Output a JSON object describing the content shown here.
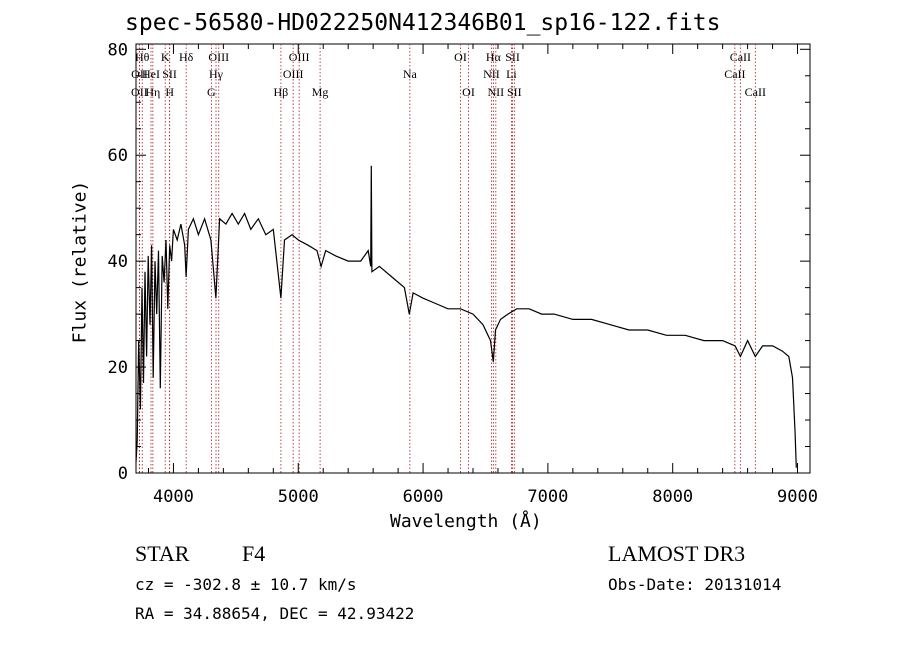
{
  "chart_data": {
    "type": "line",
    "title": "spec-56580-HD022250N412346B01_sp16-122.fits",
    "xlabel": "Wavelength (Å)",
    "ylabel": "Flux (relative)",
    "xlim": [
      3700,
      9100
    ],
    "ylim": [
      0,
      81
    ],
    "xticks": [
      4000,
      5000,
      6000,
      7000,
      8000,
      9000
    ],
    "xtick_labels": [
      "4000",
      "5000",
      "6000",
      "7000",
      "8000",
      "9000"
    ],
    "yticks": [
      0,
      20,
      40,
      60,
      80
    ],
    "ytick_labels": [
      "0",
      "20",
      "40",
      "60",
      "80"
    ],
    "line_color": "#000000",
    "marker_line_color": "#b01818",
    "series_points": [
      [
        3700,
        2
      ],
      [
        3710,
        6
      ],
      [
        3722,
        25
      ],
      [
        3735,
        12
      ],
      [
        3748,
        35
      ],
      [
        3760,
        17
      ],
      [
        3772,
        38
      ],
      [
        3785,
        22
      ],
      [
        3798,
        41
      ],
      [
        3812,
        28
      ],
      [
        3825,
        43
      ],
      [
        3838,
        18
      ],
      [
        3852,
        40
      ],
      [
        3866,
        30
      ],
      [
        3880,
        42
      ],
      [
        3895,
        16
      ],
      [
        3910,
        41
      ],
      [
        3925,
        36
      ],
      [
        3940,
        44
      ],
      [
        3955,
        31
      ],
      [
        3970,
        43
      ],
      [
        3985,
        40
      ],
      [
        4000,
        46
      ],
      [
        4030,
        44
      ],
      [
        4060,
        47
      ],
      [
        4090,
        43
      ],
      [
        4101,
        37
      ],
      [
        4120,
        46
      ],
      [
        4160,
        48
      ],
      [
        4200,
        45
      ],
      [
        4250,
        48
      ],
      [
        4300,
        44
      ],
      [
        4340,
        33
      ],
      [
        4370,
        48
      ],
      [
        4420,
        47
      ],
      [
        4470,
        49
      ],
      [
        4520,
        47
      ],
      [
        4570,
        49
      ],
      [
        4620,
        46
      ],
      [
        4680,
        48
      ],
      [
        4740,
        45
      ],
      [
        4800,
        46
      ],
      [
        4861,
        33
      ],
      [
        4890,
        44
      ],
      [
        4950,
        45
      ],
      [
        5000,
        44
      ],
      [
        5080,
        43
      ],
      [
        5150,
        42
      ],
      [
        5183,
        39
      ],
      [
        5220,
        42
      ],
      [
        5300,
        41
      ],
      [
        5400,
        40
      ],
      [
        5500,
        40
      ],
      [
        5560,
        42
      ],
      [
        5580,
        39
      ],
      [
        5585,
        58
      ],
      [
        5590,
        38
      ],
      [
        5650,
        39
      ],
      [
        5750,
        37
      ],
      [
        5850,
        35
      ],
      [
        5890,
        30
      ],
      [
        5920,
        34
      ],
      [
        6000,
        33
      ],
      [
        6100,
        32
      ],
      [
        6200,
        31
      ],
      [
        6300,
        31
      ],
      [
        6400,
        30
      ],
      [
        6480,
        28
      ],
      [
        6540,
        25
      ],
      [
        6563,
        21
      ],
      [
        6580,
        27
      ],
      [
        6620,
        29
      ],
      [
        6680,
        30
      ],
      [
        6750,
        31
      ],
      [
        6850,
        31
      ],
      [
        6950,
        30
      ],
      [
        7050,
        30
      ],
      [
        7200,
        29
      ],
      [
        7350,
        29
      ],
      [
        7500,
        28
      ],
      [
        7650,
        27
      ],
      [
        7800,
        27
      ],
      [
        7950,
        26
      ],
      [
        8100,
        26
      ],
      [
        8250,
        25
      ],
      [
        8400,
        25
      ],
      [
        8500,
        24
      ],
      [
        8542,
        22
      ],
      [
        8600,
        25
      ],
      [
        8662,
        22
      ],
      [
        8720,
        24
      ],
      [
        8800,
        24
      ],
      [
        8880,
        23
      ],
      [
        8930,
        22
      ],
      [
        8960,
        18
      ],
      [
        8980,
        8
      ],
      [
        8990,
        1
      ]
    ],
    "line_markers": [
      {
        "label": "OII",
        "wl": 3727,
        "row": 3
      },
      {
        "label": "Hθ",
        "wl": 3750,
        "row": 1
      },
      {
        "label": "OII",
        "wl": 3728,
        "row": 2
      },
      {
        "label": "Hη",
        "wl": 3835,
        "row": 3
      },
      {
        "label": "HeI",
        "wl": 3820,
        "row": 2
      },
      {
        "label": "K",
        "wl": 3934,
        "row": 1
      },
      {
        "label": "SII",
        "wl": 3969,
        "row": 2
      },
      {
        "label": "H",
        "wl": 3970,
        "row": 3
      },
      {
        "label": "Hδ",
        "wl": 4102,
        "row": 1
      },
      {
        "label": "G",
        "wl": 4304,
        "row": 3
      },
      {
        "label": "Hγ",
        "wl": 4341,
        "row": 2
      },
      {
        "label": "OIII",
        "wl": 4363,
        "row": 1
      },
      {
        "label": "Hβ",
        "wl": 4861,
        "row": 3
      },
      {
        "label": "OIII",
        "wl": 4959,
        "row": 2
      },
      {
        "label": "OIII",
        "wl": 5007,
        "row": 1
      },
      {
        "label": "Mg",
        "wl": 5175,
        "row": 3
      },
      {
        "label": "Na",
        "wl": 5894,
        "row": 2
      },
      {
        "label": "OI",
        "wl": 6300,
        "row": 1
      },
      {
        "label": "OI",
        "wl": 6364,
        "row": 3
      },
      {
        "label": "NII",
        "wl": 6548,
        "row": 2
      },
      {
        "label": "Hα",
        "wl": 6563,
        "row": 1
      },
      {
        "label": "NII",
        "wl": 6583,
        "row": 3
      },
      {
        "label": "Li",
        "wl": 6708,
        "row": 2
      },
      {
        "label": "SII",
        "wl": 6717,
        "row": 1
      },
      {
        "label": "SII",
        "wl": 6731,
        "row": 3
      },
      {
        "label": "CaII",
        "wl": 8498,
        "row": 2
      },
      {
        "label": "CaII",
        "wl": 8542,
        "row": 1
      },
      {
        "label": "CaII",
        "wl": 8662,
        "row": 3
      }
    ]
  },
  "info": {
    "object_class": "STAR",
    "subclass": "F4",
    "survey": "LAMOST DR3",
    "cz": "cz = -302.8 ± 10.7 km/s",
    "obs_date": "Obs-Date: 20131014",
    "coords": "RA =  34.88654, DEC =  42.93422"
  }
}
